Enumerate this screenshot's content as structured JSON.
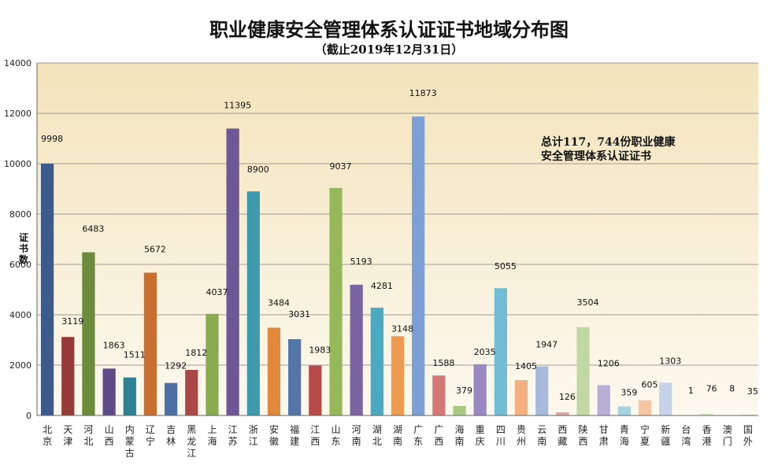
{
  "chart_data": {
    "type": "bar",
    "title": "职业健康安全管理体系认证证书地域分布图",
    "subtitle": "（截止2019年12月31日）",
    "ylabel": "证书数",
    "ylim": [
      0,
      14000
    ],
    "yticks": [
      0,
      2000,
      4000,
      6000,
      8000,
      10000,
      12000,
      14000
    ],
    "grid": true,
    "annotation": [
      "总计117，744份职业健康",
      "安全管理体系认证证书"
    ],
    "categories": [
      "北京",
      "天津",
      "河北",
      "山西",
      "内蒙古",
      "辽宁",
      "吉林",
      "黑龙江",
      "上海",
      "江苏",
      "浙江",
      "安徽",
      "福建",
      "江西",
      "山东",
      "河南",
      "湖北",
      "湖南",
      "广东",
      "广西",
      "海南",
      "重庆",
      "四川",
      "贵州",
      "云南",
      "西藏",
      "陕西",
      "甘肃",
      "青海",
      "宁夏",
      "新疆",
      "台湾",
      "香港",
      "澳门",
      "国外"
    ],
    "values": [
      9998,
      3119,
      6483,
      1863,
      1511,
      5672,
      1292,
      1812,
      4037,
      11395,
      8900,
      3484,
      3031,
      1983,
      9037,
      5193,
      4281,
      3148,
      11873,
      1588,
      379,
      2035,
      5055,
      1405,
      1947,
      126,
      3504,
      1206,
      359,
      605,
      1303,
      1,
      76,
      8,
      35
    ],
    "colors": [
      "#3c5a8c",
      "#963a3a",
      "#6c8c3c",
      "#5e4a86",
      "#2f7f95",
      "#c86f30",
      "#4c6fa5",
      "#a94a48",
      "#8aab50",
      "#6e5797",
      "#3d9bae",
      "#e1883e",
      "#5475a8",
      "#b84b4a",
      "#97b858",
      "#7b64a2",
      "#4ba9c2",
      "#ee9a50",
      "#7ca0d6",
      "#d47776",
      "#a9c882",
      "#9a88c1",
      "#72bcd6",
      "#f4b080",
      "#a7b9dc",
      "#dca5a4",
      "#c2d8a4",
      "#b9aed5",
      "#a3d3e1",
      "#f6c6a4",
      "#c6d2ea",
      "#e6c3c3",
      "#d7e5c2",
      "#d4cce4",
      "#c8e3ec"
    ]
  }
}
